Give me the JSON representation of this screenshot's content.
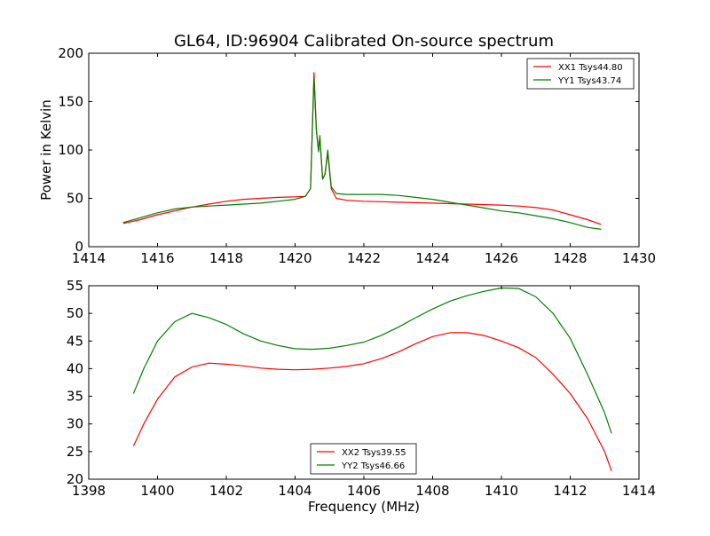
{
  "chart_data": [
    {
      "type": "line",
      "title": "GL64, ID:96904 Calibrated On-source spectrum",
      "xlabel": "",
      "ylabel": "Power in Kelvin",
      "xlim": [
        1414,
        1430
      ],
      "ylim": [
        0,
        200
      ],
      "xticks": [
        "1414",
        "1416",
        "1418",
        "1420",
        "1422",
        "1424",
        "1426",
        "1428",
        "1430"
      ],
      "yticks": [
        "0",
        "50",
        "100",
        "150",
        "200"
      ],
      "legend_position": "top-right",
      "grid": false,
      "series": [
        {
          "name": "XX1 Tsys44.80",
          "color": "#ff0000",
          "points": [
            [
              1415.0,
              24
            ],
            [
              1415.5,
              28
            ],
            [
              1416.0,
              33
            ],
            [
              1416.5,
              37
            ],
            [
              1417.0,
              41
            ],
            [
              1417.5,
              44
            ],
            [
              1418.0,
              47
            ],
            [
              1418.5,
              49
            ],
            [
              1419.0,
              50
            ],
            [
              1419.5,
              51
            ],
            [
              1420.0,
              51.5
            ],
            [
              1420.3,
              52
            ],
            [
              1420.45,
              60
            ],
            [
              1420.55,
              180
            ],
            [
              1420.62,
              120
            ],
            [
              1420.68,
              100
            ],
            [
              1420.72,
              113
            ],
            [
              1420.8,
              70
            ],
            [
              1420.87,
              75
            ],
            [
              1420.95,
              97
            ],
            [
              1421.05,
              60
            ],
            [
              1421.2,
              50
            ],
            [
              1421.5,
              48
            ],
            [
              1422.0,
              47
            ],
            [
              1422.5,
              46.5
            ],
            [
              1423.0,
              46
            ],
            [
              1423.5,
              45.5
            ],
            [
              1424.0,
              45
            ],
            [
              1424.5,
              44.5
            ],
            [
              1425.0,
              44
            ],
            [
              1425.5,
              43.5
            ],
            [
              1426.0,
              43
            ],
            [
              1426.5,
              42
            ],
            [
              1427.0,
              40.5
            ],
            [
              1427.5,
              38
            ],
            [
              1428.0,
              33
            ],
            [
              1428.5,
              28
            ],
            [
              1428.9,
              23
            ]
          ]
        },
        {
          "name": "YY1 Tsys43.74",
          "color": "#008000",
          "points": [
            [
              1415.0,
              25
            ],
            [
              1415.5,
              30
            ],
            [
              1416.0,
              35
            ],
            [
              1416.5,
              39
            ],
            [
              1417.0,
              41
            ],
            [
              1417.5,
              42
            ],
            [
              1418.0,
              43
            ],
            [
              1418.5,
              44
            ],
            [
              1419.0,
              45
            ],
            [
              1419.5,
              47
            ],
            [
              1420.0,
              49
            ],
            [
              1420.3,
              52
            ],
            [
              1420.45,
              60
            ],
            [
              1420.55,
              175
            ],
            [
              1420.62,
              120
            ],
            [
              1420.68,
              98
            ],
            [
              1420.72,
              115
            ],
            [
              1420.8,
              70
            ],
            [
              1420.87,
              75
            ],
            [
              1420.95,
              100
            ],
            [
              1421.05,
              62
            ],
            [
              1421.2,
              55
            ],
            [
              1421.5,
              54
            ],
            [
              1422.0,
              54
            ],
            [
              1422.5,
              54
            ],
            [
              1423.0,
              53
            ],
            [
              1423.5,
              51
            ],
            [
              1424.0,
              49
            ],
            [
              1424.5,
              46
            ],
            [
              1425.0,
              43
            ],
            [
              1425.5,
              40
            ],
            [
              1426.0,
              37
            ],
            [
              1426.5,
              35
            ],
            [
              1427.0,
              32
            ],
            [
              1427.5,
              29
            ],
            [
              1428.0,
              25
            ],
            [
              1428.5,
              20
            ],
            [
              1428.9,
              18
            ]
          ]
        }
      ]
    },
    {
      "type": "line",
      "title": "",
      "xlabel": "Frequency (MHz)",
      "ylabel": "",
      "xlim": [
        1398,
        1414
      ],
      "ylim": [
        20,
        55
      ],
      "xticks": [
        "1398",
        "1400",
        "1402",
        "1404",
        "1406",
        "1408",
        "1410",
        "1412",
        "1414"
      ],
      "yticks": [
        "20",
        "25",
        "30",
        "35",
        "40",
        "45",
        "50",
        "55"
      ],
      "legend_position": "bottom-center",
      "grid": false,
      "series": [
        {
          "name": "XX2 Tsys39.55",
          "color": "#ff0000",
          "points": [
            [
              1399.3,
              26
            ],
            [
              1399.6,
              30
            ],
            [
              1400.0,
              34.5
            ],
            [
              1400.5,
              38.5
            ],
            [
              1401.0,
              40.3
            ],
            [
              1401.5,
              41
            ],
            [
              1402.0,
              40.8
            ],
            [
              1402.5,
              40.5
            ],
            [
              1403.0,
              40.1
            ],
            [
              1403.5,
              39.9
            ],
            [
              1404.0,
              39.8
            ],
            [
              1404.5,
              39.9
            ],
            [
              1405.0,
              40.1
            ],
            [
              1405.5,
              40.4
            ],
            [
              1406.0,
              40.9
            ],
            [
              1406.5,
              41.8
            ],
            [
              1407.0,
              43
            ],
            [
              1407.5,
              44.5
            ],
            [
              1408.0,
              45.8
            ],
            [
              1408.5,
              46.5
            ],
            [
              1409.0,
              46.5
            ],
            [
              1409.5,
              46
            ],
            [
              1410.0,
              45
            ],
            [
              1410.5,
              43.8
            ],
            [
              1411.0,
              42
            ],
            [
              1411.5,
              39
            ],
            [
              1412.0,
              35.5
            ],
            [
              1412.5,
              31
            ],
            [
              1413.0,
              25
            ],
            [
              1413.2,
              21.5
            ]
          ]
        },
        {
          "name": "YY2 Tsys46.66",
          "color": "#008000",
          "points": [
            [
              1399.3,
              35.5
            ],
            [
              1399.6,
              40
            ],
            [
              1400.0,
              45
            ],
            [
              1400.5,
              48.5
            ],
            [
              1401.0,
              50
            ],
            [
              1401.5,
              49.2
            ],
            [
              1402.0,
              48
            ],
            [
              1402.5,
              46.3
            ],
            [
              1403.0,
              45
            ],
            [
              1403.5,
              44.2
            ],
            [
              1404.0,
              43.6
            ],
            [
              1404.5,
              43.5
            ],
            [
              1405.0,
              43.7
            ],
            [
              1405.5,
              44.2
            ],
            [
              1406.0,
              44.8
            ],
            [
              1406.5,
              46
            ],
            [
              1407.0,
              47.5
            ],
            [
              1407.5,
              49.2
            ],
            [
              1408.0,
              50.8
            ],
            [
              1408.5,
              52.2
            ],
            [
              1409.0,
              53.2
            ],
            [
              1409.5,
              54
            ],
            [
              1410.0,
              54.6
            ],
            [
              1410.5,
              54.5
            ],
            [
              1411.0,
              53
            ],
            [
              1411.5,
              50
            ],
            [
              1412.0,
              45.5
            ],
            [
              1412.5,
              39
            ],
            [
              1413.0,
              32
            ],
            [
              1413.2,
              28.3
            ]
          ]
        }
      ]
    }
  ]
}
